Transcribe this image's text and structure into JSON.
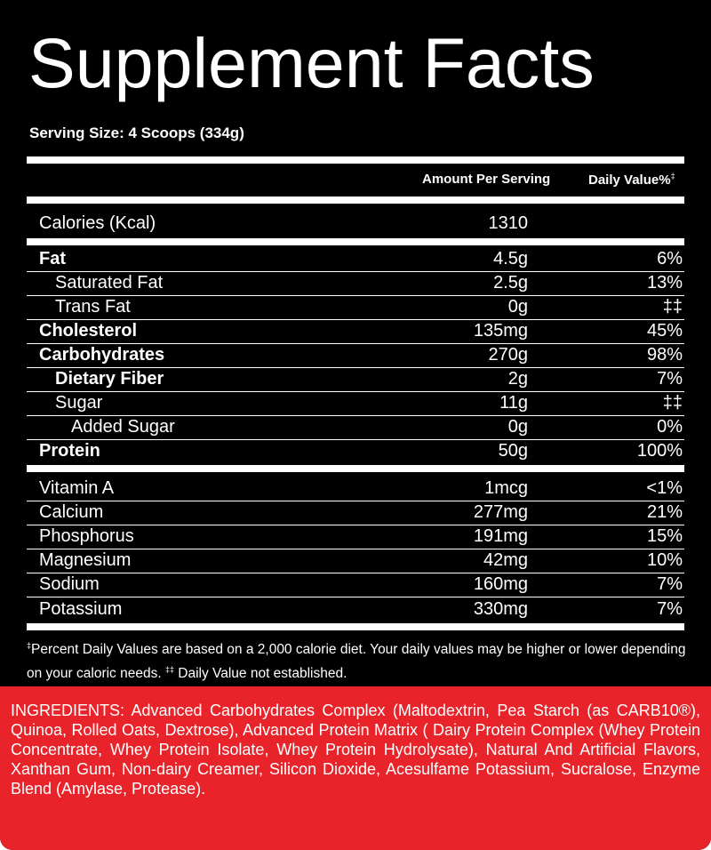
{
  "title": "Supplement Facts",
  "serving_size": "Serving Size: 4 Scoops (334g)",
  "header": {
    "amount": "Amount Per Serving",
    "daily_value": "Daily Value%",
    "daily_value_mark": "‡"
  },
  "calories": {
    "name": "Calories (Kcal)",
    "amount": "1310",
    "dv": ""
  },
  "macros": [
    {
      "name": "Fat",
      "amount": "4.5g",
      "dv": "6%"
    },
    {
      "name": "Saturated Fat",
      "amount": "2.5g",
      "dv": "13%"
    },
    {
      "name": "Trans Fat",
      "amount": "0g",
      "dv": "‡‡"
    },
    {
      "name": "Cholesterol",
      "amount": "135mg",
      "dv": "45%"
    },
    {
      "name": "Carbohydrates",
      "amount": "270g",
      "dv": "98%"
    },
    {
      "name": "Dietary Fiber",
      "amount": "2g",
      "dv": "7%"
    },
    {
      "name": "Sugar",
      "amount": "11g",
      "dv": "‡‡"
    },
    {
      "name": "Added Sugar",
      "amount": "0g",
      "dv": "0%"
    },
    {
      "name": "Protein",
      "amount": "50g",
      "dv": "100%"
    }
  ],
  "minerals": [
    {
      "name": "Vitamin A",
      "amount": "1mcg",
      "dv": "<1%"
    },
    {
      "name": "Calcium",
      "amount": "277mg",
      "dv": "21%"
    },
    {
      "name": "Phosphorus",
      "amount": "191mg",
      "dv": "15%"
    },
    {
      "name": "Magnesium",
      "amount": "42mg",
      "dv": "10%"
    },
    {
      "name": "Sodium",
      "amount": "160mg",
      "dv": "7%"
    },
    {
      "name": "Potassium",
      "amount": "330mg",
      "dv": "7%"
    }
  ],
  "footnote": {
    "mark": "‡",
    "text": "Percent Daily Values are based on a 2,000 calorie diet. Your daily values may be higher or lower depending on your caloric needs. ",
    "mark2": "‡‡",
    "text2": " Daily Value not established."
  },
  "ingredients": "INGREDIENTS: Advanced Carbohydrates Complex (Maltodextrin, Pea Starch (as CARB10®), Quinoa, Rolled Oats, Dextrose), Advanced Protein Matrix ( Dairy Protein Complex (Whey Protein Concentrate, Whey Protein Isolate, Whey Protein Hydrolysate), Natural And Artificial Flavors, Xanthan Gum, Non-dairy Creamer, Silicon Dioxide, Acesulfame Potassium, Sucralose, Enzyme Blend (Amylase, Protease).",
  "colors": {
    "panel": "#000000",
    "text": "#ffffff",
    "ingredients_bg": "#e8232a"
  }
}
